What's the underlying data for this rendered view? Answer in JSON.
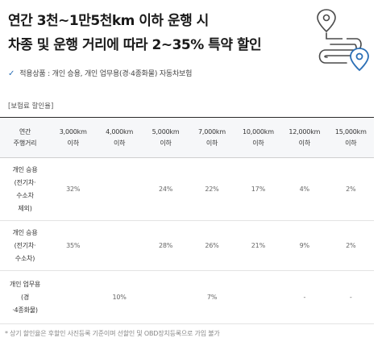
{
  "headline": {
    "line1": "연간 3천~1만5천km 이하 운행 시",
    "line2": "차종 및 운행 거리에 따라 2~35% 특약 할인"
  },
  "applies": {
    "text": "적용상품 : 개인 승용, 개인 업무용(경·4종화물) 자동차보험"
  },
  "table": {
    "title": "[보험료 할인율]",
    "header_first_line1": "연간",
    "header_first_line2": "주행거리",
    "columns": [
      {
        "km": "3,000km",
        "suffix": "이하"
      },
      {
        "km": "4,000km",
        "suffix": "이하"
      },
      {
        "km": "5,000km",
        "suffix": "이하"
      },
      {
        "km": "7,000km",
        "suffix": "이하"
      },
      {
        "km": "10,000km",
        "suffix": "이하"
      },
      {
        "km": "12,000km",
        "suffix": "이하"
      },
      {
        "km": "15,000km",
        "suffix": "이하"
      }
    ],
    "rows": [
      {
        "label_lines": [
          "개인 승용",
          "(전기차·",
          "수소차",
          "제외)"
        ],
        "cells": [
          "32%",
          "",
          "24%",
          "22%",
          "17%",
          "4%",
          "2%"
        ]
      },
      {
        "label_lines": [
          "개인 승용",
          "(전기차·",
          "수소차)"
        ],
        "cells": [
          "35%",
          "",
          "28%",
          "26%",
          "21%",
          "9%",
          "2%"
        ]
      },
      {
        "label_lines": [
          "개인 업무용",
          "(경",
          "·4종화물)"
        ],
        "cells": [
          "",
          "10%",
          "",
          "7%",
          "",
          "-",
          "-"
        ]
      }
    ]
  },
  "footnote": "* 상기 할인율은 후할인 사진등록 기준이며 선할인 및 OBD장치등록으로 가입 불가",
  "colors": {
    "accent_blue": "#2b6fb6",
    "icon_gray": "#4a4a4a"
  }
}
